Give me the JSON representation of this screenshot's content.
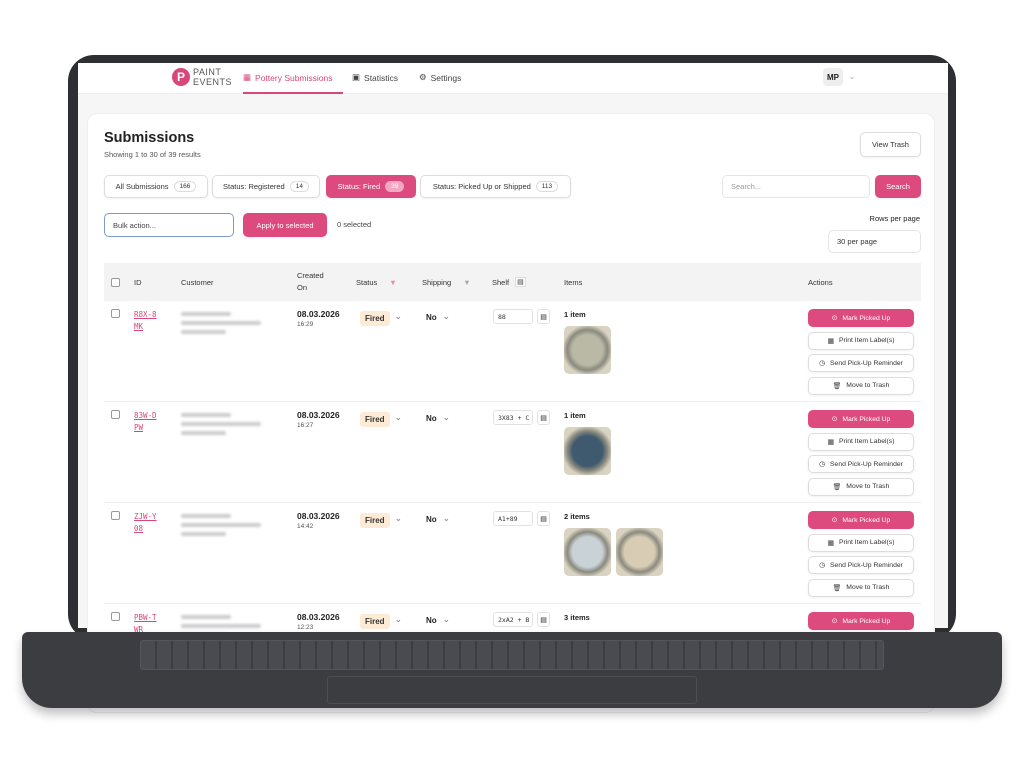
{
  "header": {
    "logo_text": [
      "PAINT",
      "EVENTS"
    ],
    "nav": [
      {
        "label": "Pottery Submissions",
        "icon": "qr-icon",
        "active": true
      },
      {
        "label": "Statistics",
        "icon": "chart-board-icon"
      },
      {
        "label": "Settings",
        "icon": "gear-icon"
      }
    ],
    "user_initials": "MP"
  },
  "page": {
    "title": "Submissions",
    "subtitle": "Showing 1 to 30 of 39 results",
    "view_trash": "View Trash",
    "tabs": [
      {
        "label": "All Submissions",
        "count": "166"
      },
      {
        "label": "Status: Registered",
        "count": "14"
      },
      {
        "label": "Status: Fired",
        "count": "39",
        "active": true
      },
      {
        "label": "Status: Picked Up or Shipped",
        "count": "113"
      }
    ],
    "search_placeholder": "Search...",
    "search_button": "Search",
    "bulk_placeholder": "Bulk action...",
    "apply_button": "Apply to selected",
    "selected_count": "0 selected",
    "rows_per_page_label": "Rows per page",
    "rows_per_page_value": "30 per page"
  },
  "table": {
    "columns": {
      "id": "ID",
      "customer": "Customer",
      "created": "Created On",
      "status": "Status",
      "shipping": "Shipping",
      "shelf": "Shelf",
      "items": "Items",
      "actions": "Actions"
    },
    "actions": [
      "Mark Picked Up",
      "Print Item Label(s)",
      "Send Pick-Up Reminder",
      "Move to Trash"
    ],
    "rows": [
      {
        "id": "R8X-8MK",
        "date": "08.03.2026",
        "time": "16:29",
        "status": "Fired",
        "shipping": "No",
        "shelf": "88",
        "items": "1 item",
        "thumbs": [
          "#b9b9a6"
        ]
      },
      {
        "id": "83W-DPW",
        "date": "08.03.2026",
        "time": "16:27",
        "status": "Fired",
        "shipping": "No",
        "shelf": "3X83 + C",
        "items": "1 item",
        "thumbs": [
          "#3f5a6e"
        ]
      },
      {
        "id": "ZJW-Y08",
        "date": "08.03.2026",
        "time": "14:42",
        "status": "Fired",
        "shipping": "No",
        "shelf": "A1+89",
        "items": "2 items",
        "thumbs": [
          "#c9d2d6",
          "#d8cdb4"
        ]
      },
      {
        "id": "PBW-TWR",
        "date": "08.03.2026",
        "time": "12:23",
        "status": "Fired",
        "shipping": "No",
        "shelf": "2xA2 + B",
        "items": "3 items",
        "thumbs": []
      }
    ]
  },
  "colors": {
    "accent": "#dd4a7d",
    "badge_bg": "#fdebd5"
  }
}
